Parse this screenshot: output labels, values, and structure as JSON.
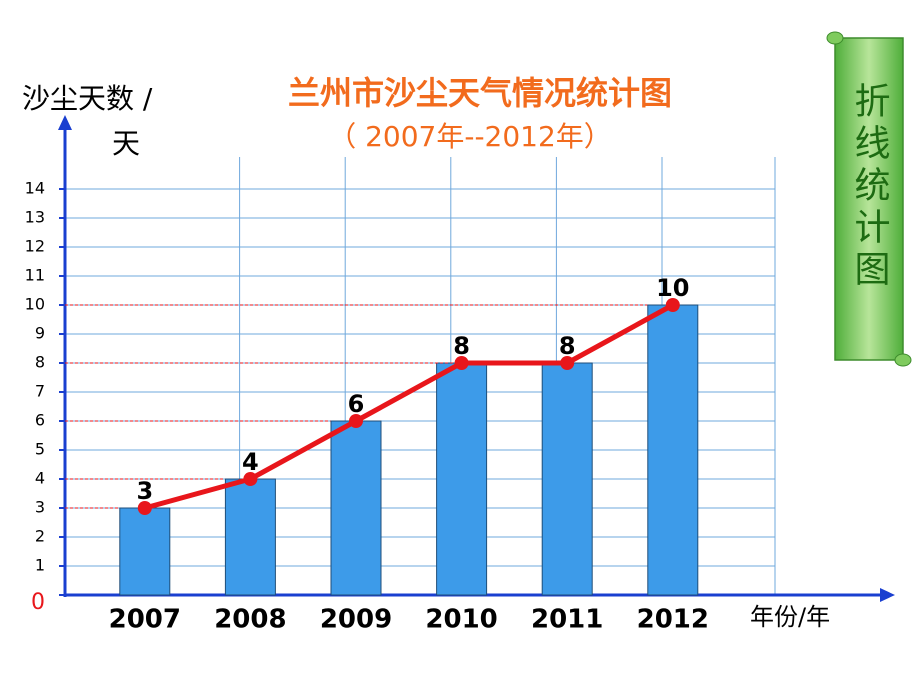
{
  "chart_data": {
    "type": "bar_line",
    "title": "兰州市沙尘天气情况统计图",
    "subtitle": "（ 2007年--2012年）",
    "ylabel_lines": [
      "沙尘天数  /",
      "天"
    ],
    "xlabel": "年份/年",
    "side_label": "折线统计图",
    "categories": [
      "2007",
      "2008",
      "2009",
      "2010",
      "2011",
      "2012"
    ],
    "values": [
      3,
      4,
      6,
      8,
      8,
      10
    ],
    "bar_color": "#3d9be9",
    "line_color": "#e8161b",
    "ylim": [
      0,
      15
    ],
    "yticks": [
      0,
      1,
      2,
      3,
      4,
      5,
      6,
      7,
      8,
      9,
      10,
      11,
      12,
      13,
      14
    ],
    "grid": true
  }
}
